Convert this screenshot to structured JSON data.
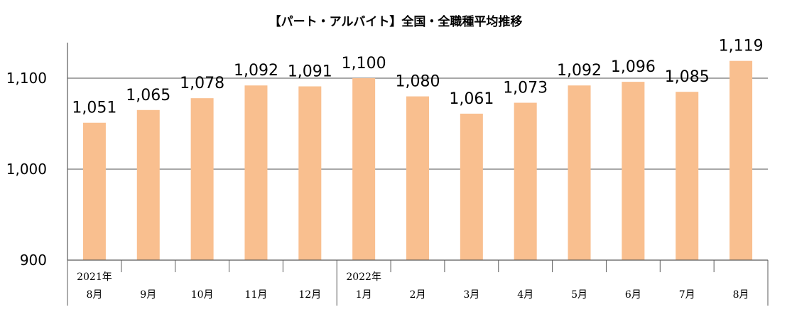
{
  "chart_data": {
    "type": "bar",
    "title": "【パート・アルバイト】全国・全職種平均推移",
    "xlabel": "",
    "ylabel": "",
    "ylim": [
      900,
      1140
    ],
    "yticks": [
      900,
      1000,
      1100
    ],
    "ytick_labels": [
      "900",
      "1,000",
      "1,100"
    ],
    "grid": true,
    "bar_color": "#F9BF8F",
    "categories": [
      "8月",
      "9月",
      "10月",
      "11月",
      "12月",
      "1月",
      "2月",
      "3月",
      "4月",
      "5月",
      "6月",
      "7月",
      "8月"
    ],
    "year_labels": [
      "2021年",
      "",
      "",
      "",
      "",
      "2022年",
      "",
      "",
      "",
      "",
      "",
      "",
      ""
    ],
    "values": [
      1051,
      1065,
      1078,
      1092,
      1091,
      1100,
      1080,
      1061,
      1073,
      1092,
      1096,
      1085,
      1119
    ],
    "value_labels": [
      "1,051",
      "1,065",
      "1,078",
      "1,092",
      "1,091",
      "1,100",
      "1,080",
      "1,061",
      "1,073",
      "1,092",
      "1,096",
      "1,085",
      "1,119"
    ]
  }
}
